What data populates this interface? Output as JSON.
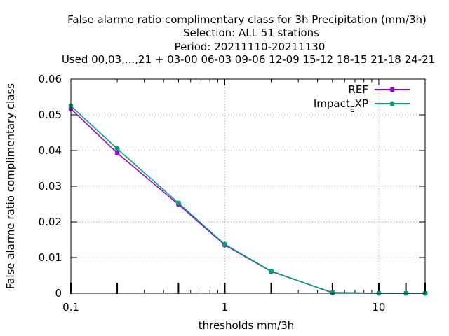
{
  "chart_data": {
    "type": "line",
    "title_lines": [
      "False alarme ratio complimentary class  for 3h Precipitation (mm/3h)",
      "Selection: ALL     51 stations",
      "Period: 20211110-20211130",
      "Used  00,03,...,21  + 03-00 06-03 09-06 12-09 15-12 18-15 21-18 24-21"
    ],
    "xlabel": "thresholds mm/3h",
    "ylabel": "False alarme ratio complimentary class",
    "x_scale": "log",
    "xlim": [
      0.1,
      20
    ],
    "ylim": [
      0,
      0.06
    ],
    "x_ticks": [
      {
        "value": 0.1,
        "label": "0.1"
      },
      {
        "value": 1,
        "label": "1"
      },
      {
        "value": 10,
        "label": "10"
      }
    ],
    "y_ticks": [
      {
        "value": 0,
        "label": "0"
      },
      {
        "value": 0.01,
        "label": "0.01"
      },
      {
        "value": 0.02,
        "label": "0.02"
      },
      {
        "value": 0.03,
        "label": "0.03"
      },
      {
        "value": 0.04,
        "label": "0.04"
      },
      {
        "value": 0.05,
        "label": "0.05"
      },
      {
        "value": 0.06,
        "label": "0.06"
      }
    ],
    "grid": true,
    "legend_position": "top-right",
    "series": [
      {
        "name": "REF",
        "color": "#9400d3",
        "x": [
          0.1,
          0.2,
          0.5,
          1,
          2,
          5,
          10,
          15,
          20
        ],
        "y": [
          0.0517,
          0.0393,
          0.0249,
          0.0135,
          0.0061,
          0.0002,
          0.0,
          0.0,
          0.0
        ]
      },
      {
        "name": "Impact_EXP",
        "name_main": "Impact",
        "name_sub": "E",
        "name_tail": "XP",
        "color": "#009e73",
        "x": [
          0.1,
          0.2,
          0.5,
          1,
          2,
          5,
          10,
          15,
          20
        ],
        "y": [
          0.0525,
          0.0405,
          0.0253,
          0.0137,
          0.0062,
          0.0001,
          0.0,
          0.0,
          0.0
        ]
      }
    ]
  }
}
